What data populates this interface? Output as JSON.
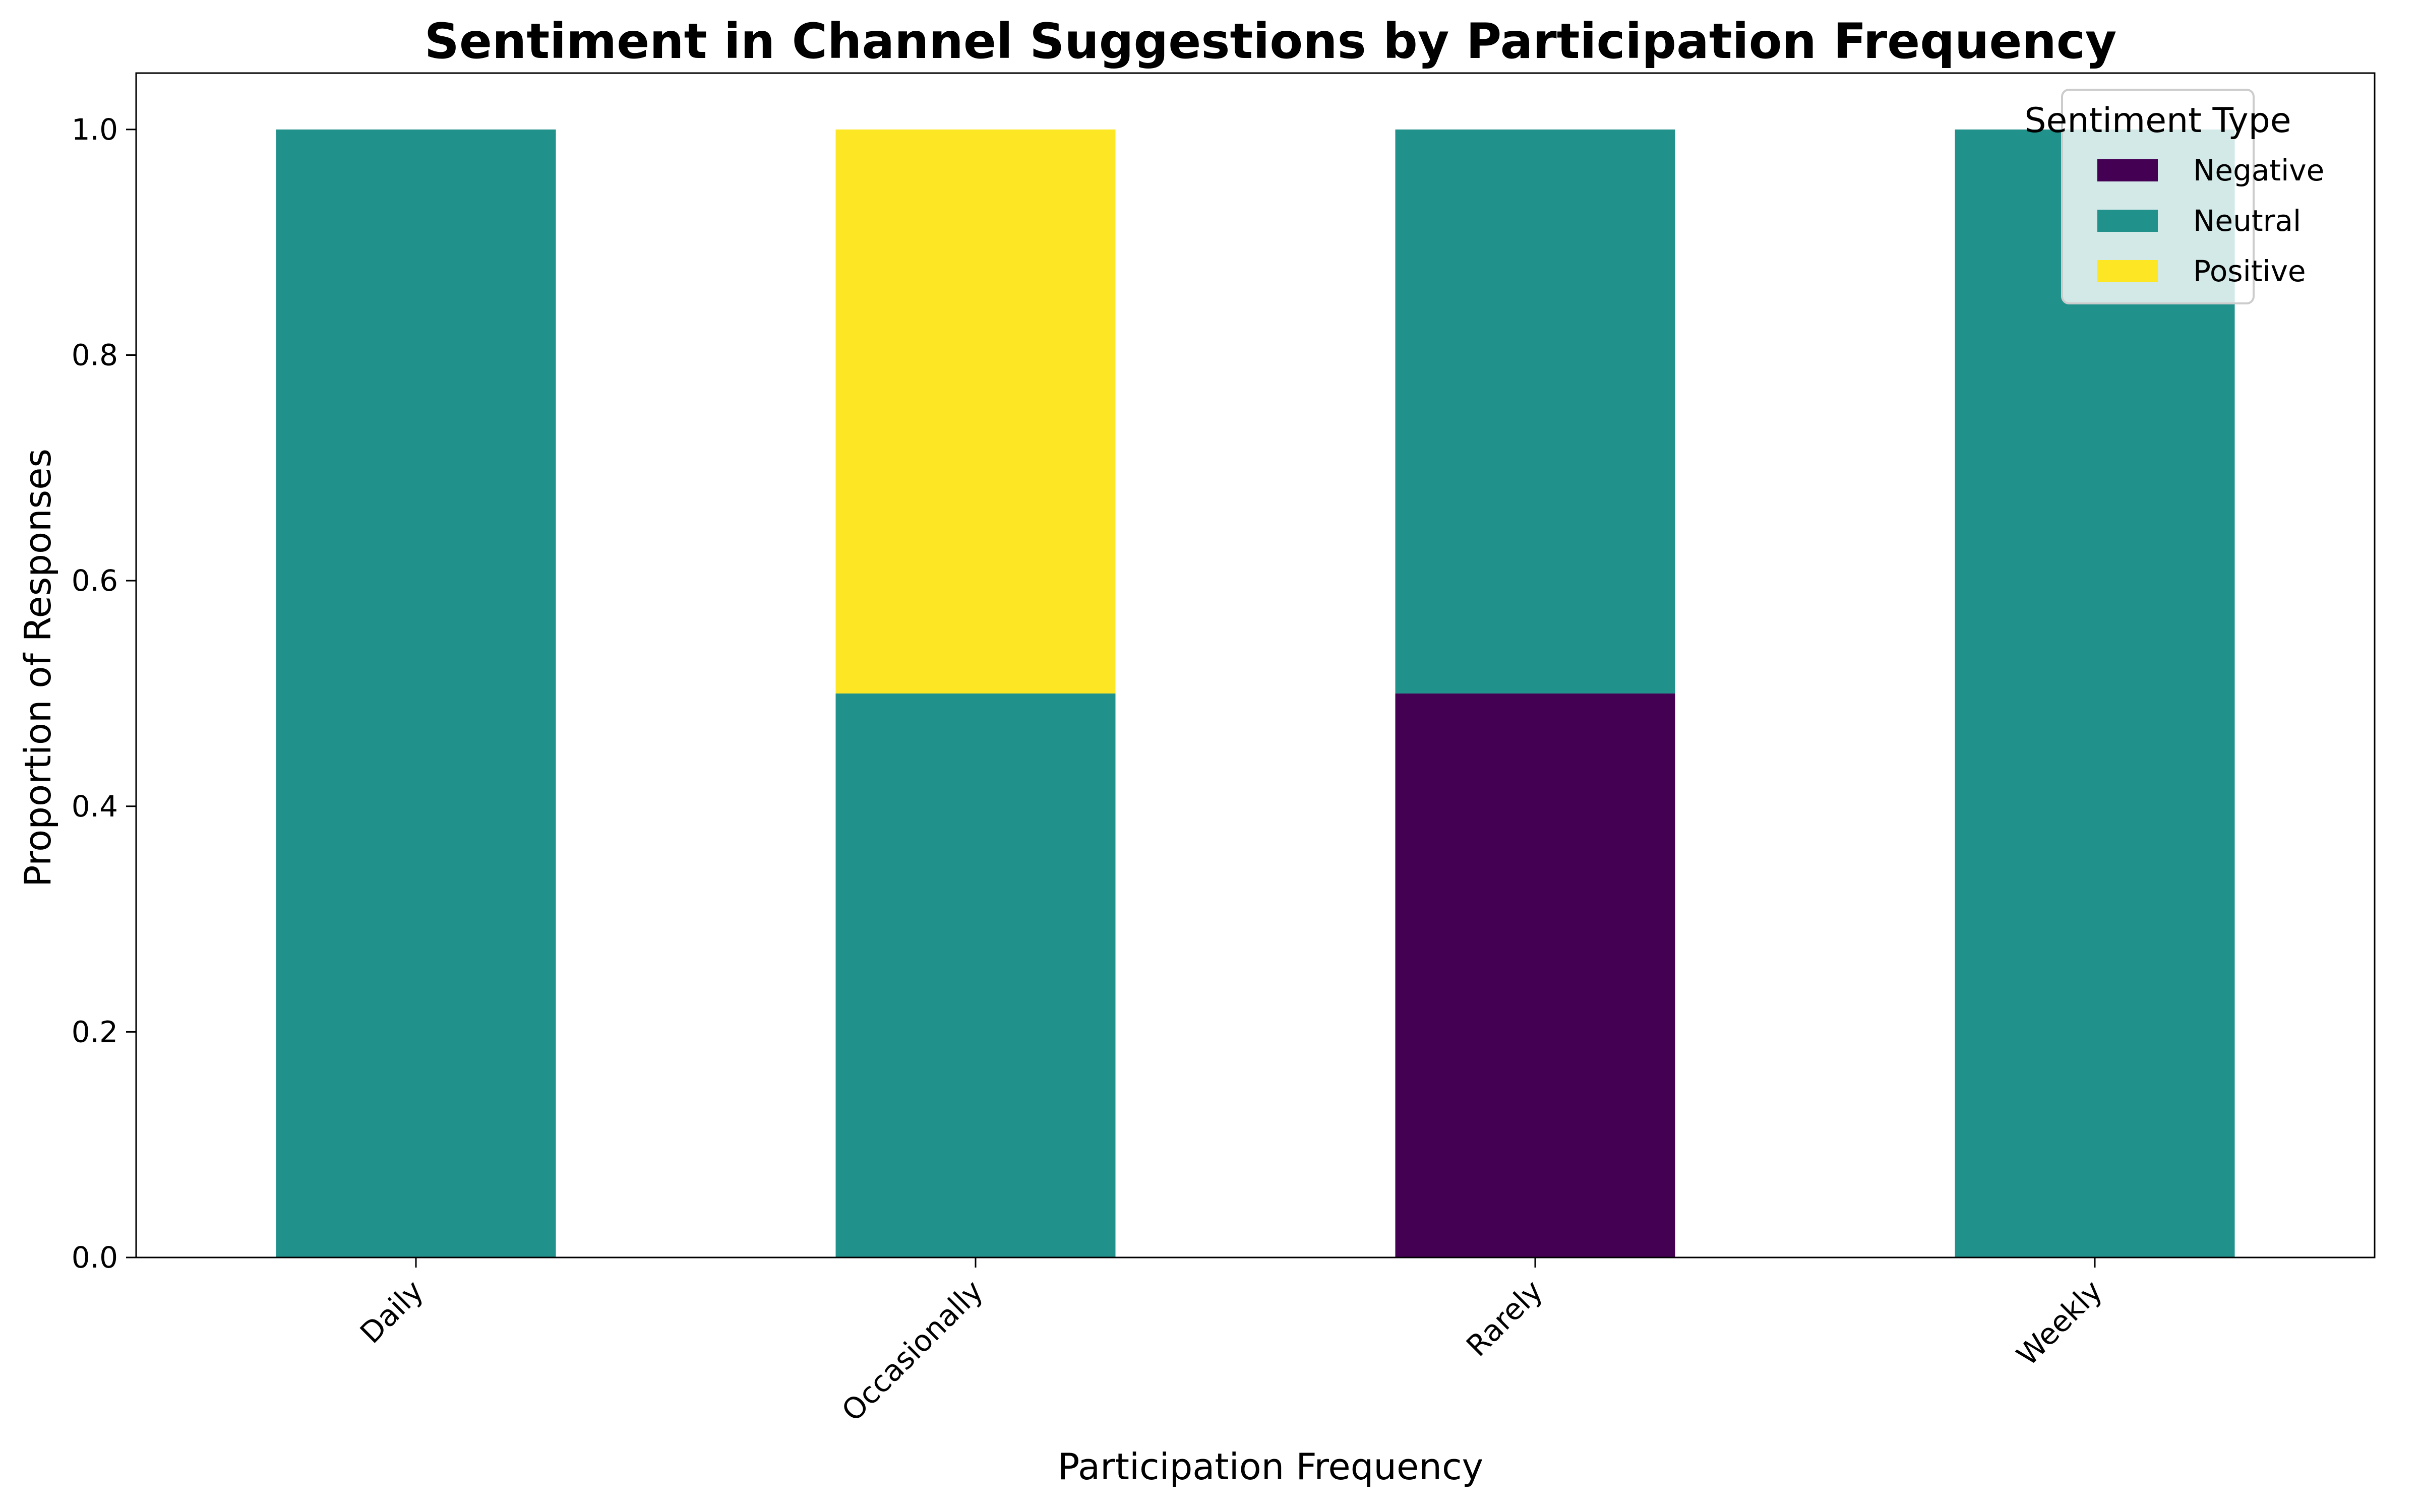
{
  "chart_data": {
    "type": "bar",
    "stacked": true,
    "title": "Sentiment in Channel Suggestions by Participation Frequency",
    "xlabel": "Participation Frequency",
    "ylabel": "Proportion of Responses",
    "categories": [
      "Daily",
      "Occasionally",
      "Rarely",
      "Weekly"
    ],
    "series": [
      {
        "name": "Negative",
        "color": "#440154",
        "values": [
          0,
          0,
          0.5,
          0
        ]
      },
      {
        "name": "Neutral",
        "color": "#21918c",
        "values": [
          1.0,
          0.5,
          0.5,
          1.0
        ]
      },
      {
        "name": "Positive",
        "color": "#fde725",
        "values": [
          0,
          0.5,
          0,
          0
        ]
      }
    ],
    "ylim": [
      0,
      1.05
    ],
    "yticks": [
      "0.0",
      "0.2",
      "0.4",
      "0.6",
      "0.8",
      "1.0"
    ],
    "grid": false,
    "legend": {
      "title": "Sentiment Type",
      "position": "top-right"
    }
  }
}
